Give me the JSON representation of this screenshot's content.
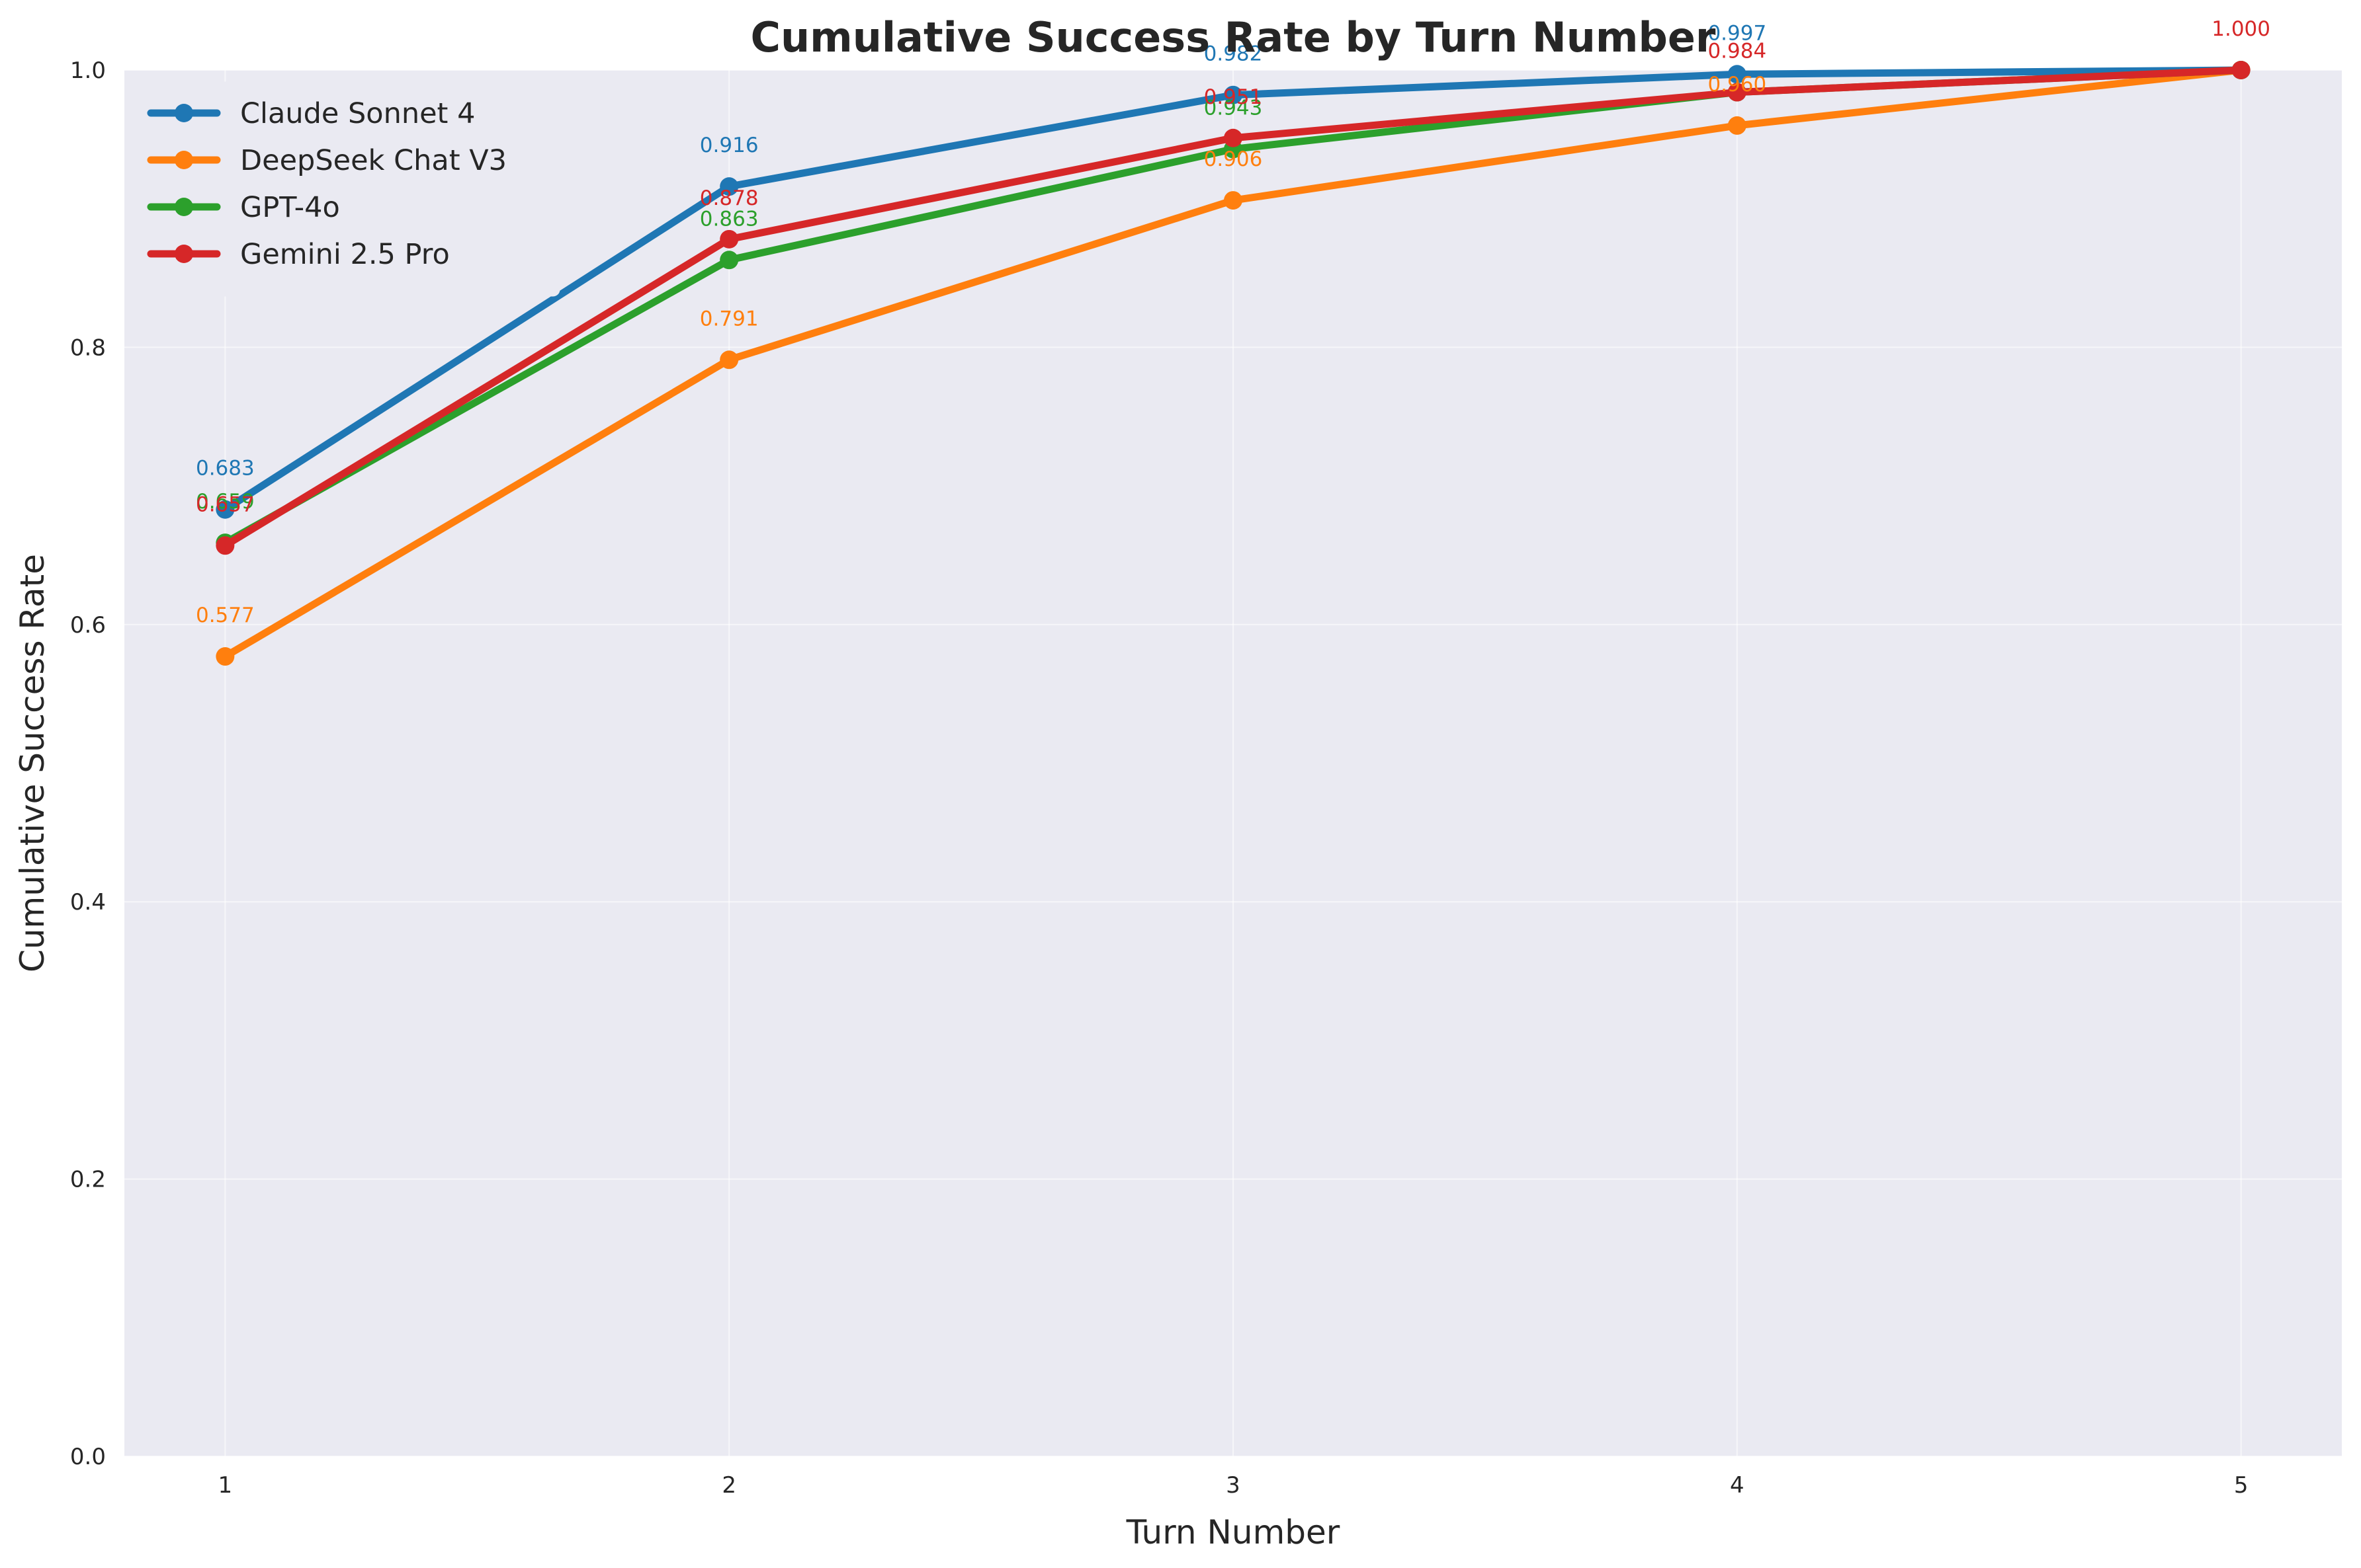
{
  "chart_data": {
    "type": "line",
    "title": "Cumulative Success Rate by Turn Number",
    "xlabel": "Turn Number",
    "ylabel": "Cumulative Success Rate",
    "x": [
      1,
      2,
      3,
      4,
      5
    ],
    "xlim": [
      0.8,
      5.2
    ],
    "ylim": [
      0,
      1.0
    ],
    "x_ticks": [
      "1",
      "2",
      "3",
      "4",
      "5"
    ],
    "y_ticks": [
      "0.0",
      "0.2",
      "0.4",
      "0.6",
      "0.8",
      "1.0"
    ],
    "grid": true,
    "legend_position": "top-left",
    "series": [
      {
        "name": "Claude Sonnet 4",
        "color": "#1f77b4",
        "values": [
          0.683,
          0.916,
          0.982,
          0.997,
          1.0
        ],
        "labels": [
          "0.683",
          "0.916",
          "0.982",
          "0.997",
          ""
        ]
      },
      {
        "name": "DeepSeek Chat V3",
        "color": "#ff7f0e",
        "values": [
          0.577,
          0.791,
          0.906,
          0.96,
          1.0
        ],
        "labels": [
          "0.577",
          "0.791",
          "0.906",
          "0.960",
          ""
        ]
      },
      {
        "name": "GPT-4o",
        "color": "#2ca02c",
        "values": [
          0.659,
          0.863,
          0.943,
          0.984,
          1.0
        ],
        "labels": [
          "0.659",
          "0.863",
          "0.943",
          "",
          ""
        ]
      },
      {
        "name": "Gemini 2.5 Pro",
        "color": "#d62728",
        "values": [
          0.657,
          0.878,
          0.951,
          0.984,
          1.0
        ],
        "labels": [
          "0.657",
          "0.878",
          "0.951",
          "0.984",
          "1.000"
        ]
      }
    ]
  }
}
